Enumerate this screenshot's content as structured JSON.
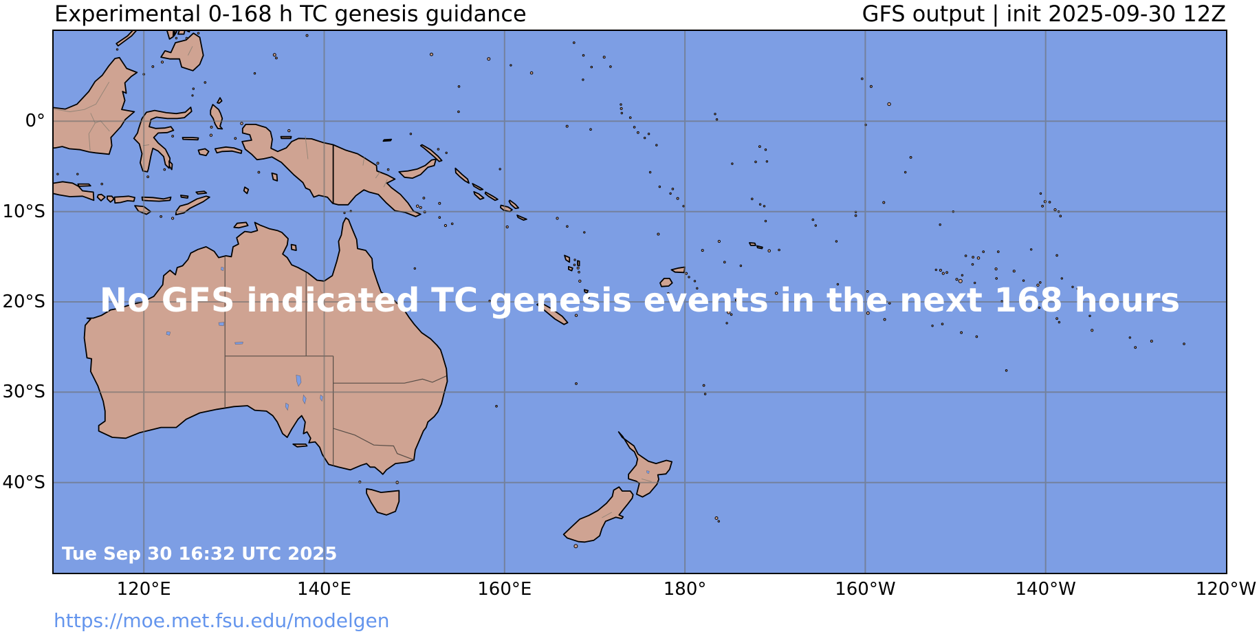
{
  "header": {
    "title_left": "Experimental 0-168 h TC genesis guidance",
    "title_right": "GFS output | init 2025-09-30 12Z"
  },
  "map": {
    "overlay_message": "No GFS indicated TC genesis events in the next 168 hours",
    "timestamp": "Tue Sep 30 16:32 UTC 2025"
  },
  "axes": {
    "x_ticks": [
      "120°E",
      "140°E",
      "160°E",
      "180°",
      "160°W",
      "140°W",
      "120°W"
    ],
    "y_ticks": [
      "0°",
      "10°S",
      "20°S",
      "30°S",
      "40°S"
    ]
  },
  "footer": {
    "url": "https://moe.met.fsu.edu/modelgen"
  },
  "colors": {
    "ocean": "#7d9ee4",
    "land": "#cfa392",
    "lake": "#7d9ee4",
    "coastline": "#000000",
    "gridline": "#6e6e6e",
    "state_border": "#4a443e",
    "province_border": "#8a7f72",
    "title_text": "#000000",
    "tick_text": "#000000",
    "overlay_text": "#ffffff",
    "timestamp_text": "#ffffff",
    "url_text": "#6495ed"
  }
}
